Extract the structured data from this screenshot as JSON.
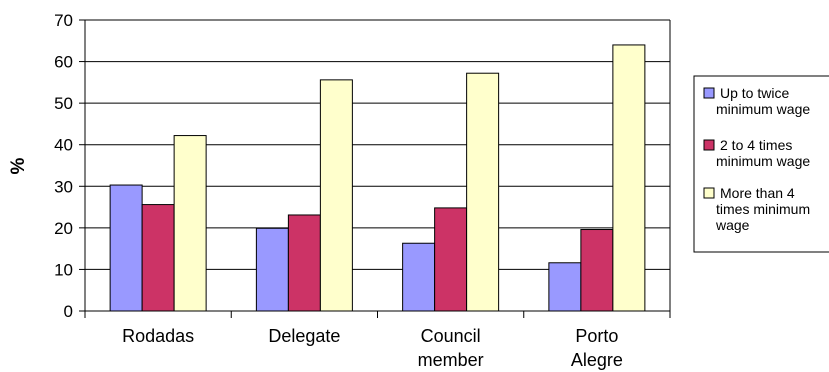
{
  "chart_data": {
    "type": "bar",
    "title": "",
    "xlabel": "",
    "ylabel": "%",
    "ylim": [
      0,
      70
    ],
    "yticks": [
      0,
      10,
      20,
      30,
      40,
      50,
      60,
      70
    ],
    "grid": true,
    "legend_position": "right",
    "categories": [
      [
        "Rodadas"
      ],
      [
        "Delegate"
      ],
      [
        "Council",
        "member"
      ],
      [
        "Porto",
        "Alegre"
      ]
    ],
    "series": [
      {
        "name": [
          "Up to twice",
          "minimum wage"
        ],
        "color": "#9999ff",
        "values": [
          30.3,
          19.9,
          16.3,
          11.6
        ]
      },
      {
        "name": [
          "2 to 4 times",
          "minimum wage"
        ],
        "color": "#cc3366",
        "values": [
          25.6,
          23.1,
          24.8,
          19.6
        ]
      },
      {
        "name": [
          "More than 4",
          "times minimum",
          "wage"
        ],
        "color": "#ffffcc",
        "values": [
          42.2,
          55.6,
          57.2,
          64.0
        ]
      }
    ]
  }
}
